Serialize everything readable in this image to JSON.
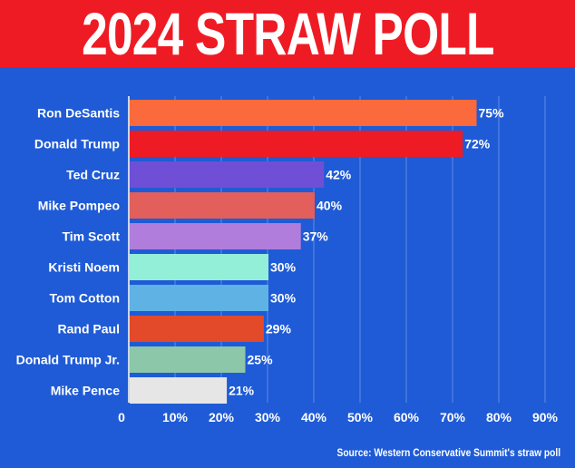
{
  "title": "2024 STRAW POLL",
  "source": "Source: Western Conservative Summit's straw poll",
  "colors": {
    "background": "#1f5bd6",
    "banner": "#ee1b24",
    "text": "#ffffff",
    "grid": "#5f8de6"
  },
  "chart_data": {
    "type": "bar",
    "orientation": "horizontal",
    "title": "2024 STRAW POLL",
    "categories": [
      "Ron DeSantis",
      "Donald Trump",
      "Ted Cruz",
      "Mike Pompeo",
      "Tim Scott",
      "Kristi Noem",
      "Tom Cotton",
      "Rand Paul",
      "Donald Trump Jr.",
      "Mike Pence"
    ],
    "values": [
      75,
      72,
      42,
      40,
      37,
      30,
      30,
      29,
      25,
      21
    ],
    "value_labels": [
      "75%",
      "72%",
      "42%",
      "40%",
      "37%",
      "30%",
      "30%",
      "29%",
      "25%",
      "21%"
    ],
    "bar_colors": [
      "#fb6a3c",
      "#ee1b24",
      "#6e4fd6",
      "#e25f5b",
      "#b07ddc",
      "#93efd8",
      "#5fb2e4",
      "#e24a2a",
      "#8cc7a9",
      "#e6e6e6"
    ],
    "xlim": [
      0,
      90
    ],
    "ticks": [
      0,
      10,
      20,
      30,
      40,
      50,
      60,
      70,
      80,
      90
    ],
    "tick_labels": [
      "0",
      "10%",
      "20%",
      "30%",
      "40%",
      "50%",
      "60%",
      "70%",
      "80%",
      "90%"
    ],
    "grid": true,
    "xlabel": "",
    "ylabel": ""
  }
}
